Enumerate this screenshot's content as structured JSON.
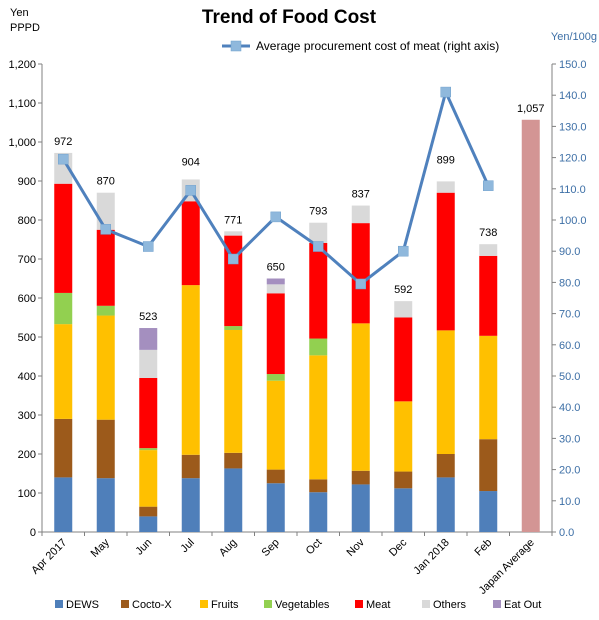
{
  "chart_data": {
    "type": "bar",
    "stacked": true,
    "title": "Trend of Food Cost",
    "ylabel_left": "Yen\nPPPD",
    "ylabel_right": "Yen/100g",
    "ylim_left": [
      0,
      1200
    ],
    "ylim_right": [
      0,
      150
    ],
    "yticks_left": [
      "0",
      "100",
      "200",
      "300",
      "400",
      "500",
      "600",
      "700",
      "800",
      "900",
      "1,000",
      "1,100",
      "1,200"
    ],
    "yticks_right": [
      "0.0",
      "10.0",
      "20.0",
      "30.0",
      "40.0",
      "50.0",
      "60.0",
      "70.0",
      "80.0",
      "90.0",
      "100.0",
      "110.0",
      "120.0",
      "130.0",
      "140.0",
      "150.0"
    ],
    "grid": false,
    "legend_position": "bottom",
    "categories": [
      "Apr 2017",
      "May",
      "Jun",
      "Jul",
      "Aug",
      "Sep",
      "Oct",
      "Nov",
      "Dec",
      "Jan 2018",
      "Feb",
      "Japan Average"
    ],
    "series": [
      {
        "name": "DEWS",
        "color": "#4f7fba",
        "values": [
          140,
          138,
          40,
          138,
          163,
          125,
          102,
          122,
          112,
          140,
          105,
          null
        ]
      },
      {
        "name": "Cocto-X",
        "color": "#9c5a1b",
        "values": [
          150,
          150,
          25,
          60,
          40,
          35,
          33,
          35,
          43,
          60,
          133,
          null
        ]
      },
      {
        "name": "Fruits",
        "color": "#ffc000",
        "values": [
          243,
          267,
          145,
          435,
          315,
          228,
          318,
          378,
          180,
          317,
          265,
          null
        ]
      },
      {
        "name": "Vegetables",
        "color": "#92d050",
        "values": [
          80,
          25,
          5,
          0,
          10,
          17,
          43,
          0,
          0,
          0,
          0,
          null
        ]
      },
      {
        "name": "Meat",
        "color": "#ff0000",
        "values": [
          280,
          195,
          180,
          215,
          232,
          207,
          245,
          257,
          215,
          353,
          205,
          null
        ]
      },
      {
        "name": "Others",
        "color": "#d9d9d9",
        "values": [
          79,
          95,
          72,
          56,
          11,
          23,
          52,
          45,
          42,
          29,
          30,
          null
        ]
      },
      {
        "name": "Eat Out",
        "color": "#a48fbf",
        "values": [
          0,
          0,
          56,
          0,
          0,
          15,
          0,
          0,
          0,
          0,
          0,
          null
        ]
      },
      {
        "name": "Japan Average",
        "color": "#d39594",
        "values": [
          null,
          null,
          null,
          null,
          null,
          null,
          null,
          null,
          null,
          null,
          null,
          1057
        ],
        "in_legend": false
      }
    ],
    "totals": [
      "972",
      "870",
      "523",
      "904",
      "771",
      "650",
      "793",
      "837",
      "592",
      "899",
      "738",
      "1,057"
    ],
    "line_series": {
      "name": "Average procurement cost of meat (right axis)",
      "axis": "right",
      "color": "#4f81bd",
      "marker_color": "#8fb8dc",
      "values": [
        119.5,
        97,
        91.5,
        109.5,
        87.5,
        101,
        91.5,
        79.5,
        90,
        141,
        111,
        null
      ]
    }
  }
}
